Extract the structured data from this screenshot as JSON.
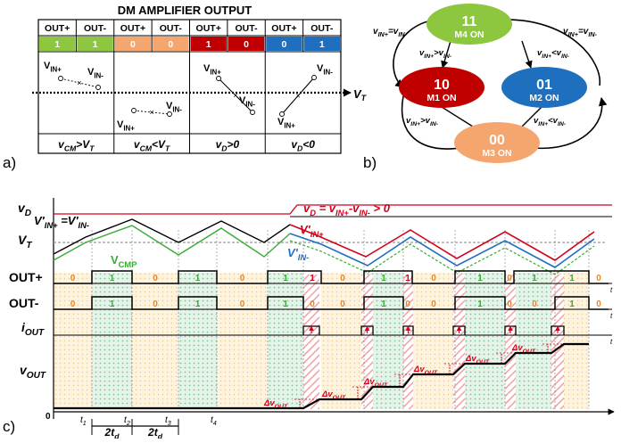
{
  "panel_a": {
    "title": "DM AMPLIFIER OUTPUT",
    "headers": [
      "OUT+",
      "OUT-",
      "OUT+",
      "OUT-",
      "OUT+",
      "OUT-",
      "OUT+",
      "OUT-"
    ],
    "bits": [
      "1",
      "1",
      "0",
      "0",
      "1",
      "0",
      "0",
      "1"
    ],
    "bit_colors": [
      "#8dc63f",
      "#8dc63f",
      "#f5a66e",
      "#f5a66e",
      "#c00000",
      "#c00000",
      "#1f6fbf",
      "#1f6fbf"
    ],
    "vt_label": "V_T",
    "vin_plus": "V_IN+",
    "vin_minus": "V_IN-",
    "conditions": [
      "V_CM>V_T",
      "V_CM<V_T",
      "V_D>0",
      "V_D<0"
    ],
    "tag": "a)"
  },
  "panel_b": {
    "tag": "b)",
    "states": [
      {
        "code": "11",
        "label": "M4  ON",
        "color": "#8dc63f"
      },
      {
        "code": "10",
        "label": "M1  ON",
        "color": "#c00000"
      },
      {
        "code": "01",
        "label": "M2  ON",
        "color": "#1f6fbf"
      },
      {
        "code": "00",
        "label": "M3  ON",
        "color": "#f5a66e"
      }
    ],
    "transitions": {
      "eq_left": "V_IN+=V_IN-",
      "eq_right": "V_IN+=V_IN-",
      "gt_top": "V_IN+>V_IN-",
      "lt_top": "V_IN+<V_IN-",
      "gt_bottom": "V_IN+>V_IN-",
      "lt_bottom": "V_IN+<V_IN-"
    }
  },
  "panel_c": {
    "tag": "c)",
    "vd_label": "v_D",
    "vd_eq": "v_D = v_IN+-v_IN- > 0",
    "vt_label": "V_T",
    "v_eq_label": "V'_IN+ =V'_IN-",
    "vcmp_label": "V_CMP",
    "vin_plus_label": "V'_IN+",
    "vin_minus_label": "V'_IN-",
    "out_plus_label": "OUT+",
    "out_minus_label": "OUT-",
    "iout_label": "i_OUT",
    "vout_label": "v_OUT",
    "axis_t": "t",
    "origin": "0",
    "time_marks": [
      "t1",
      "t2",
      "t3",
      "t4"
    ],
    "two_td": "2t_d",
    "out_plus_bits": [
      "0",
      "1",
      "0",
      "1",
      "0",
      "1",
      "1",
      "0",
      "1",
      "1",
      "0",
      "1",
      "0",
      "1",
      "1",
      "0",
      "1"
    ],
    "out_minus_bits": [
      "0",
      "1",
      "0",
      "1",
      "0",
      "1",
      "0",
      "0",
      "1",
      "0",
      "0",
      "1",
      "0",
      "0",
      "1",
      "0",
      "0"
    ],
    "delta_label": "Δv_OUT",
    "colors": {
      "green": "#3aaa35",
      "red": "#d0021b",
      "blue": "#1f6fbf",
      "orange": "#e8872a"
    }
  }
}
